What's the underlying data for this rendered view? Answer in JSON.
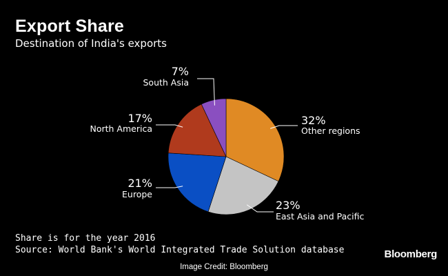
{
  "title": "Export Share",
  "subtitle": "Destination of India's exports",
  "notes": {
    "period": "Share is for the year 2016",
    "source": "Source: World Bank's World Integrated Trade Solution database"
  },
  "brand": "Bloomberg",
  "credit": "Image Credit: Bloomberg",
  "chart_data": {
    "type": "pie",
    "title": "Export Share",
    "subtitle": "Destination of India's exports",
    "slices": [
      {
        "label": "Other regions",
        "value": 32,
        "value_label": "32%",
        "color": "#e08a24"
      },
      {
        "label": "East Asia and Pacific",
        "value": 23,
        "value_label": "23%",
        "color": "#c4c4c4"
      },
      {
        "label": "Europe",
        "value": 21,
        "value_label": "21%",
        "color": "#0a4fc4"
      },
      {
        "label": "North America",
        "value": 17,
        "value_label": "17%",
        "color": "#b03a1d"
      },
      {
        "label": "South Asia",
        "value": 7,
        "value_label": "7%",
        "color": "#8a4fc0"
      }
    ],
    "start": "12 o'clock",
    "direction": "clockwise",
    "legend": "none (direct labels)"
  }
}
